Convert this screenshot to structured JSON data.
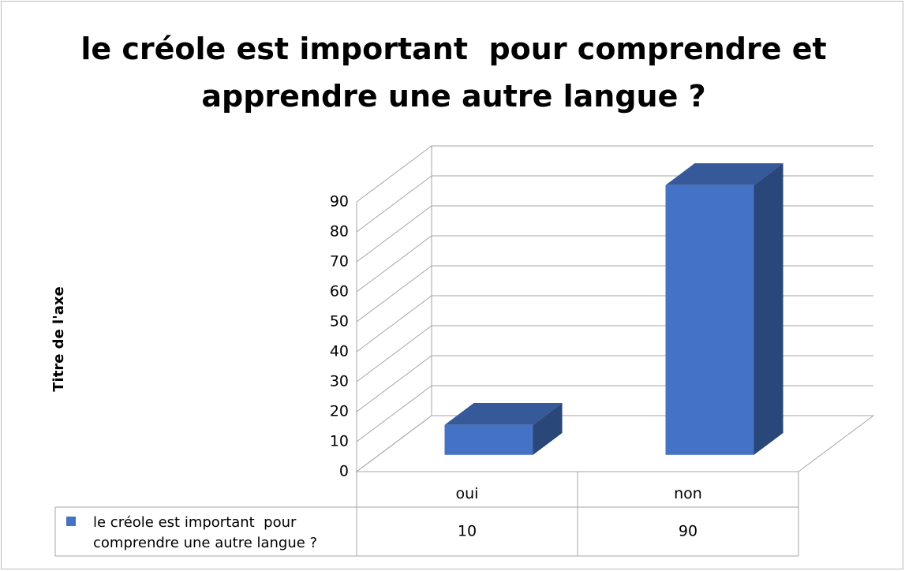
{
  "chart_data": {
    "type": "bar",
    "title": "le créole est important  pour comprendre et apprendre une autre langue ?",
    "y_label": "Titre de l'axe",
    "categories": [
      "oui",
      "non"
    ],
    "series": [
      {
        "name": "le créole est important  pour comprendre une autre langue ?",
        "color": "#4472c4",
        "values": [
          10,
          90
        ]
      }
    ],
    "ylim": [
      0,
      90
    ],
    "yticks": [
      0,
      10,
      20,
      30,
      40,
      50,
      60,
      70,
      80,
      90
    ],
    "grid": true,
    "data_table": true
  }
}
